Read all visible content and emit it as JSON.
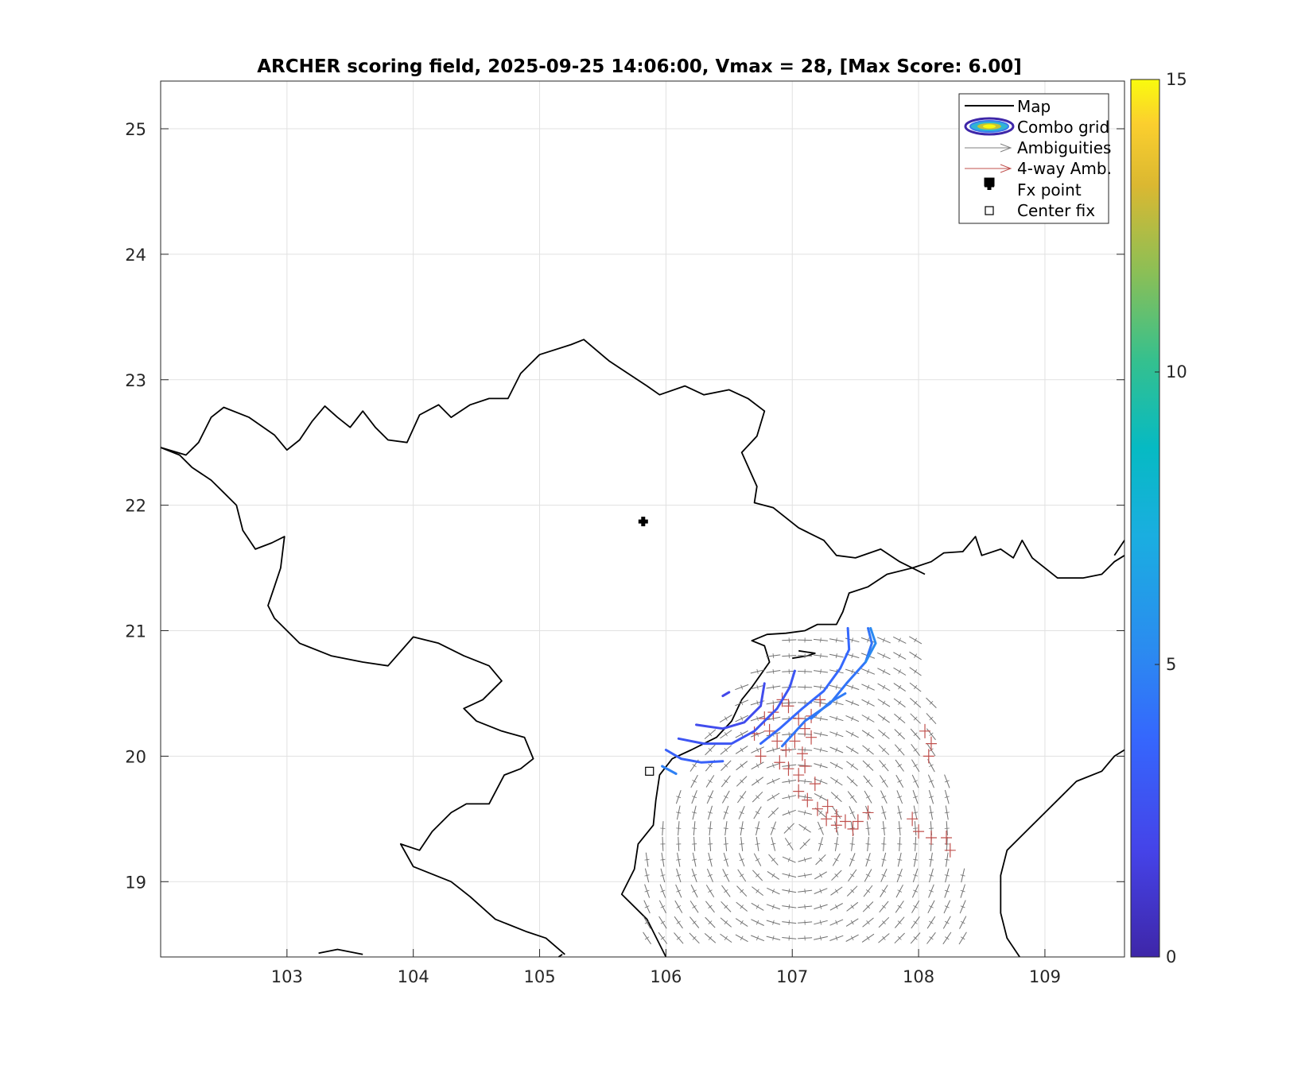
{
  "chart_data": {
    "type": "scatter",
    "title": "ARCHER scoring field, 2025-09-25 14:06:00, Vmax = 28, [Max Score: 6.00]",
    "xlabel": "",
    "ylabel": "",
    "xlim": [
      102,
      109.63
    ],
    "ylim": [
      18.4,
      25.38
    ],
    "xticks": [
      "103",
      "104",
      "105",
      "106",
      "107",
      "108",
      "109"
    ],
    "yticks": [
      "19",
      "20",
      "21",
      "22",
      "23",
      "24",
      "25"
    ],
    "grid": true,
    "legend_position": "top-right",
    "legend": [
      "Map",
      "Combo grid",
      "Ambiguities",
      "4-way Amb.",
      "Fx point",
      "Center fix"
    ],
    "colorbar": {
      "range": [
        0,
        15
      ],
      "ticks": [
        "0",
        "5",
        "10",
        "15"
      ],
      "colormap": "parula"
    },
    "fx_point": {
      "lon": 105.82,
      "lat": 21.87
    },
    "center_fix": {
      "lon": 105.87,
      "lat": 19.88
    },
    "contours": [
      {
        "level": 2.0,
        "points": [
          [
            106.45,
            20.48
          ],
          [
            106.5,
            20.51
          ]
        ]
      },
      {
        "level": 2.3,
        "points": [
          [
            106.24,
            20.25
          ],
          [
            106.45,
            20.22
          ],
          [
            106.62,
            20.27
          ],
          [
            106.75,
            20.4
          ],
          [
            106.78,
            20.58
          ]
        ]
      },
      {
        "level": 2.8,
        "points": [
          [
            106.1,
            20.14
          ],
          [
            106.3,
            20.1
          ],
          [
            106.52,
            20.1
          ],
          [
            106.7,
            20.2
          ],
          [
            106.88,
            20.38
          ],
          [
            106.98,
            20.55
          ],
          [
            107.02,
            20.68
          ]
        ]
      },
      {
        "level": 3.4,
        "points": [
          [
            106.0,
            20.05
          ],
          [
            106.12,
            19.98
          ],
          [
            106.28,
            19.95
          ],
          [
            106.45,
            19.96
          ]
        ]
      },
      {
        "level": 3.8,
        "points": [
          [
            106.75,
            20.1
          ],
          [
            106.9,
            20.22
          ],
          [
            107.08,
            20.38
          ],
          [
            107.25,
            20.52
          ],
          [
            107.38,
            20.7
          ],
          [
            107.45,
            20.85
          ],
          [
            107.44,
            21.02
          ]
        ]
      },
      {
        "level": 4.3,
        "points": [
          [
            106.92,
            20.08
          ],
          [
            107.1,
            20.28
          ],
          [
            107.3,
            20.42
          ],
          [
            107.43,
            20.58
          ],
          [
            107.58,
            20.75
          ],
          [
            107.63,
            20.9
          ],
          [
            107.6,
            21.02
          ]
        ]
      },
      {
        "level": 4.8,
        "points": [
          [
            105.97,
            19.92
          ],
          [
            106.08,
            19.86
          ]
        ]
      },
      {
        "level": 4.6,
        "points": [
          [
            107.15,
            20.3
          ],
          [
            107.3,
            20.43
          ],
          [
            107.42,
            20.5
          ]
        ]
      },
      {
        "level": 5.2,
        "points": [
          [
            107.58,
            20.75
          ],
          [
            107.66,
            20.9
          ],
          [
            107.62,
            21.02
          ]
        ]
      }
    ],
    "ambiguity_grid": {
      "lon_range": [
        105.85,
        108.45
      ],
      "lat_range": [
        18.55,
        20.95
      ],
      "spacing": 0.125
    },
    "four_way_points": [
      [
        106.78,
        20.3
      ],
      [
        106.85,
        20.35
      ],
      [
        106.92,
        20.45
      ],
      [
        106.97,
        20.4
      ],
      [
        107.05,
        20.3
      ],
      [
        107.1,
        20.22
      ],
      [
        106.82,
        20.2
      ],
      [
        106.88,
        20.12
      ],
      [
        106.95,
        20.05
      ],
      [
        107.02,
        20.12
      ],
      [
        107.08,
        20.02
      ],
      [
        107.15,
        20.15
      ],
      [
        106.9,
        19.95
      ],
      [
        106.97,
        19.9
      ],
      [
        107.05,
        19.85
      ],
      [
        107.1,
        19.92
      ],
      [
        107.18,
        19.78
      ],
      [
        107.05,
        19.72
      ],
      [
        107.12,
        19.65
      ],
      [
        107.2,
        19.58
      ],
      [
        107.28,
        19.6
      ],
      [
        107.35,
        19.52
      ],
      [
        107.42,
        19.48
      ],
      [
        107.52,
        19.48
      ],
      [
        107.6,
        19.55
      ],
      [
        107.35,
        19.45
      ],
      [
        107.48,
        19.42
      ],
      [
        107.27,
        19.5
      ],
      [
        107.95,
        19.5
      ],
      [
        108.0,
        19.4
      ],
      [
        108.1,
        19.35
      ],
      [
        108.22,
        19.35
      ],
      [
        108.25,
        19.25
      ],
      [
        108.05,
        20.2
      ],
      [
        108.1,
        20.1
      ],
      [
        108.08,
        20.0
      ],
      [
        107.15,
        20.32
      ],
      [
        107.22,
        20.45
      ],
      [
        106.7,
        20.18
      ],
      [
        106.75,
        20.0
      ]
    ],
    "map_coastline": [
      [
        [
          102.0,
          22.46
        ],
        [
          102.1,
          22.43
        ],
        [
          102.2,
          22.4
        ],
        [
          102.3,
          22.5
        ],
        [
          102.4,
          22.7
        ],
        [
          102.5,
          22.78
        ],
        [
          102.7,
          22.7
        ],
        [
          102.9,
          22.56
        ],
        [
          103.0,
          22.44
        ],
        [
          103.1,
          22.52
        ],
        [
          103.2,
          22.67
        ],
        [
          103.3,
          22.79
        ],
        [
          103.4,
          22.7
        ],
        [
          103.5,
          22.62
        ],
        [
          103.6,
          22.75
        ],
        [
          103.7,
          22.62
        ],
        [
          103.8,
          22.52
        ],
        [
          103.95,
          22.5
        ],
        [
          104.05,
          22.72
        ],
        [
          104.2,
          22.8
        ],
        [
          104.3,
          22.7
        ],
        [
          104.45,
          22.8
        ],
        [
          104.6,
          22.85
        ],
        [
          104.75,
          22.85
        ],
        [
          104.85,
          23.05
        ],
        [
          105.0,
          23.2
        ],
        [
          105.25,
          23.28
        ],
        [
          105.35,
          23.32
        ],
        [
          105.55,
          23.15
        ],
        [
          105.7,
          23.05
        ],
        [
          105.85,
          22.95
        ],
        [
          105.95,
          22.88
        ],
        [
          106.15,
          22.95
        ],
        [
          106.3,
          22.88
        ],
        [
          106.5,
          22.92
        ],
        [
          106.65,
          22.85
        ],
        [
          106.78,
          22.75
        ],
        [
          106.72,
          22.55
        ],
        [
          106.6,
          22.42
        ],
        [
          106.72,
          22.15
        ],
        [
          106.7,
          22.02
        ],
        [
          106.85,
          21.98
        ],
        [
          107.05,
          21.82
        ],
        [
          107.25,
          21.72
        ],
        [
          107.35,
          21.6
        ],
        [
          107.5,
          21.58
        ],
        [
          107.7,
          21.65
        ],
        [
          107.85,
          21.55
        ],
        [
          107.95,
          21.5
        ],
        [
          108.1,
          21.55
        ],
        [
          108.2,
          21.62
        ],
        [
          108.35,
          21.63
        ],
        [
          108.45,
          21.75
        ],
        [
          108.5,
          21.6
        ],
        [
          108.65,
          21.65
        ],
        [
          108.75,
          21.58
        ],
        [
          108.82,
          21.72
        ],
        [
          108.9,
          21.58
        ],
        [
          109.0,
          21.5
        ],
        [
          109.1,
          21.42
        ],
        [
          109.2,
          21.42
        ],
        [
          109.3,
          21.42
        ],
        [
          109.45,
          21.45
        ],
        [
          109.55,
          21.55
        ],
        [
          109.63,
          21.6
        ]
      ],
      [
        [
          102.0,
          22.46
        ],
        [
          102.15,
          22.4
        ],
        [
          102.25,
          22.3
        ],
        [
          102.4,
          22.2
        ],
        [
          102.5,
          22.1
        ],
        [
          102.6,
          22.0
        ],
        [
          102.65,
          21.8
        ],
        [
          102.75,
          21.65
        ],
        [
          102.88,
          21.7
        ],
        [
          102.98,
          21.75
        ],
        [
          102.95,
          21.5
        ],
        [
          102.9,
          21.35
        ],
        [
          102.85,
          21.2
        ],
        [
          102.9,
          21.1
        ],
        [
          103.1,
          20.9
        ],
        [
          103.35,
          20.8
        ],
        [
          103.6,
          20.75
        ],
        [
          103.8,
          20.72
        ],
        [
          104.0,
          20.95
        ],
        [
          104.2,
          20.9
        ],
        [
          104.4,
          20.8
        ],
        [
          104.6,
          20.72
        ],
        [
          104.7,
          20.6
        ],
        [
          104.55,
          20.45
        ],
        [
          104.4,
          20.38
        ],
        [
          104.5,
          20.28
        ],
        [
          104.7,
          20.2
        ],
        [
          104.88,
          20.15
        ],
        [
          104.95,
          19.98
        ],
        [
          104.85,
          19.9
        ],
        [
          104.72,
          19.85
        ],
        [
          104.6,
          19.62
        ],
        [
          104.42,
          19.62
        ],
        [
          104.3,
          19.55
        ],
        [
          104.15,
          19.4
        ],
        [
          104.05,
          19.25
        ],
        [
          103.9,
          19.3
        ],
        [
          104.0,
          19.12
        ],
        [
          104.3,
          19.0
        ],
        [
          104.45,
          18.88
        ],
        [
          104.65,
          18.7
        ],
        [
          104.9,
          18.6
        ],
        [
          105.05,
          18.55
        ],
        [
          105.2,
          18.42
        ]
      ],
      [
        [
          103.25,
          18.43
        ],
        [
          103.4,
          18.46
        ],
        [
          103.6,
          18.42
        ]
      ],
      [
        [
          105.15,
          18.4
        ],
        [
          105.18,
          18.42
        ]
      ],
      [
        [
          106.0,
          18.4
        ],
        [
          105.85,
          18.7
        ],
        [
          105.65,
          18.9
        ],
        [
          105.75,
          19.1
        ],
        [
          105.78,
          19.3
        ],
        [
          105.9,
          19.45
        ],
        [
          105.92,
          19.65
        ],
        [
          105.95,
          19.85
        ],
        [
          106.05,
          19.98
        ],
        [
          106.2,
          20.05
        ],
        [
          106.4,
          20.15
        ],
        [
          106.52,
          20.28
        ],
        [
          106.6,
          20.45
        ],
        [
          106.68,
          20.55
        ],
        [
          106.75,
          20.65
        ],
        [
          106.82,
          20.75
        ],
        [
          106.78,
          20.88
        ],
        [
          106.68,
          20.92
        ],
        [
          106.8,
          20.97
        ],
        [
          106.95,
          20.98
        ],
        [
          107.1,
          21.0
        ],
        [
          107.2,
          21.05
        ],
        [
          107.35,
          21.05
        ],
        [
          107.4,
          21.15
        ],
        [
          107.45,
          21.3
        ],
        [
          107.6,
          21.35
        ],
        [
          107.75,
          21.45
        ],
        [
          107.95,
          21.5
        ],
        [
          108.05,
          21.45
        ]
      ],
      [
        [
          107.0,
          20.78
        ],
        [
          107.12,
          20.8
        ],
        [
          107.18,
          20.82
        ],
        [
          107.05,
          20.84
        ]
      ],
      [
        [
          108.8,
          18.4
        ],
        [
          108.7,
          18.55
        ],
        [
          108.65,
          18.75
        ],
        [
          108.65,
          19.05
        ],
        [
          108.7,
          19.25
        ],
        [
          108.9,
          19.45
        ],
        [
          109.1,
          19.65
        ],
        [
          109.25,
          19.8
        ],
        [
          109.45,
          19.88
        ],
        [
          109.55,
          20.0
        ],
        [
          109.63,
          20.05
        ]
      ],
      [
        [
          109.55,
          21.6
        ],
        [
          109.63,
          21.72
        ]
      ]
    ]
  }
}
